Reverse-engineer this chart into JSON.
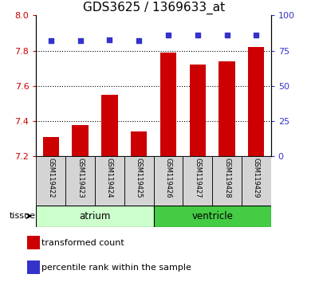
{
  "title": "GDS3625 / 1369633_at",
  "samples": [
    "GSM119422",
    "GSM119423",
    "GSM119424",
    "GSM119425",
    "GSM119426",
    "GSM119427",
    "GSM119428",
    "GSM119429"
  ],
  "transformed_counts": [
    7.31,
    7.38,
    7.55,
    7.34,
    7.79,
    7.72,
    7.74,
    7.82
  ],
  "percentile_ranks": [
    82,
    82,
    83,
    82,
    86,
    86,
    86,
    86
  ],
  "ylim_left": [
    7.2,
    8.0
  ],
  "ylim_right": [
    0,
    100
  ],
  "yticks_left": [
    7.2,
    7.4,
    7.6,
    7.8,
    8.0
  ],
  "yticks_right": [
    0,
    25,
    50,
    75,
    100
  ],
  "bar_color": "#cc0000",
  "dot_color": "#3333cc",
  "grid_color": "#000000",
  "tissue_groups": [
    {
      "label": "atrium",
      "start": 0,
      "end": 4,
      "color": "#ccffcc"
    },
    {
      "label": "ventricle",
      "start": 4,
      "end": 8,
      "color": "#44cc44"
    }
  ],
  "legend_labels": [
    "transformed count",
    "percentile rank within the sample"
  ],
  "legend_colors": [
    "#cc0000",
    "#3333cc"
  ],
  "tick_color_left": "#cc0000",
  "tick_color_right": "#3333cc",
  "bar_bottom": 7.2,
  "xlabel_tissue": "tissue",
  "title_fontsize": 11,
  "tick_fontsize": 8,
  "sample_fontsize": 6,
  "legend_fontsize": 8,
  "tissue_fontsize": 8.5,
  "bar_width": 0.55
}
